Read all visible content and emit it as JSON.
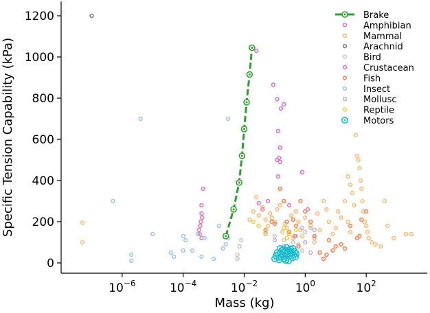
{
  "chart_data": {
    "type": "scatter",
    "title": "",
    "xlabel": "Mass (kg)",
    "ylabel": "Specific Tension Capability (kPa)",
    "xscale": "log",
    "xlim": [
      1e-08,
      10000
    ],
    "ylim": [
      -50,
      1270
    ],
    "x_ticks": [
      {
        "value": 1e-06,
        "base": "10",
        "exp": "−6"
      },
      {
        "value": 0.0001,
        "base": "10",
        "exp": "−4"
      },
      {
        "value": 0.01,
        "base": "10",
        "exp": "−2"
      },
      {
        "value": 1,
        "base": "10",
        "exp": "0"
      },
      {
        "value": 100,
        "base": "10",
        "exp": "2"
      }
    ],
    "y_ticks": [
      0,
      200,
      400,
      600,
      800,
      1000,
      1200
    ],
    "legend_position": "top-right",
    "line_series": [
      {
        "name": "Brake",
        "color": "#2ca02c",
        "points": [
          [
            0.0025,
            130
          ],
          [
            0.0045,
            260
          ],
          [
            0.0068,
            390
          ],
          [
            0.0085,
            520
          ],
          [
            0.01,
            650
          ],
          [
            0.012,
            780
          ],
          [
            0.015,
            915
          ],
          [
            0.018,
            1045
          ]
        ]
      }
    ],
    "series": [
      {
        "name": "Amphibian",
        "color": "#e377c2",
        "points": [
          [
            0.00045,
            360
          ],
          [
            0.0004,
            280
          ],
          [
            0.0004,
            240
          ],
          [
            0.00038,
            200
          ],
          [
            0.00036,
            180
          ],
          [
            0.00035,
            140
          ],
          [
            0.00033,
            160
          ],
          [
            0.0004,
            120
          ],
          [
            0.00042,
            220
          ],
          [
            0.03,
            290
          ],
          [
            0.04,
            260
          ],
          [
            0.06,
            300
          ],
          [
            0.3,
            280
          ],
          [
            0.5,
            250
          ],
          [
            1.2,
            260
          ]
        ]
      },
      {
        "name": "Mammal",
        "color": "#ffbb78",
        "points": [
          [
            5e-08,
            195
          ],
          [
            5e-08,
            100
          ],
          [
            0.02,
            250
          ],
          [
            0.03,
            230
          ],
          [
            0.04,
            270
          ],
          [
            0.05,
            210
          ],
          [
            0.06,
            180
          ],
          [
            0.07,
            240
          ],
          [
            0.08,
            220
          ],
          [
            0.1,
            200
          ],
          [
            0.12,
            260
          ],
          [
            0.15,
            280
          ],
          [
            0.18,
            150
          ],
          [
            0.2,
            300
          ],
          [
            0.22,
            190
          ],
          [
            0.25,
            170
          ],
          [
            0.3,
            140
          ],
          [
            0.35,
            230
          ],
          [
            0.4,
            120
          ],
          [
            0.5,
            250
          ],
          [
            0.6,
            200
          ],
          [
            0.7,
            160
          ],
          [
            0.8,
            130
          ],
          [
            1,
            220
          ],
          [
            1.5,
            180
          ],
          [
            2,
            100
          ],
          [
            2.5,
            240
          ],
          [
            3,
            160
          ],
          [
            4,
            300
          ],
          [
            5,
            260
          ],
          [
            6,
            200
          ],
          [
            8,
            140
          ],
          [
            10,
            170
          ],
          [
            12,
            250
          ],
          [
            15,
            220
          ],
          [
            20,
            300
          ],
          [
            25,
            200
          ],
          [
            30,
            150
          ],
          [
            40,
            280
          ],
          [
            45,
            620
          ],
          [
            50,
            520
          ],
          [
            55,
            500
          ],
          [
            60,
            460
          ],
          [
            65,
            400
          ],
          [
            70,
            360
          ],
          [
            75,
            300
          ],
          [
            80,
            250
          ],
          [
            90,
            200
          ],
          [
            100,
            180
          ],
          [
            110,
            150
          ],
          [
            120,
            120
          ],
          [
            150,
            100
          ],
          [
            200,
            90
          ],
          [
            300,
            80
          ],
          [
            400,
            300
          ],
          [
            500,
            180
          ],
          [
            800,
            120
          ],
          [
            2000,
            140
          ],
          [
            3000,
            140
          ],
          [
            25,
            420
          ],
          [
            30,
            380
          ],
          [
            35,
            340
          ],
          [
            0.015,
            210
          ],
          [
            0.025,
            320
          ]
        ]
      },
      {
        "name": "Arachnid",
        "color": "#7f7f7f",
        "points": [
          [
            1e-07,
            1200
          ]
        ]
      },
      {
        "name": "Bird",
        "color": "#c7c7c7",
        "points": [
          [
            0.006,
            20
          ],
          [
            0.006,
            40
          ],
          [
            0.007,
            80
          ],
          [
            0.008,
            110
          ],
          [
            0.1,
            130
          ],
          [
            0.2,
            110
          ],
          [
            0.4,
            100
          ],
          [
            0.6,
            90
          ],
          [
            1,
            150
          ],
          [
            1.5,
            170
          ],
          [
            2,
            120
          ],
          [
            0.8,
            60
          ]
        ]
      },
      {
        "name": "Crustacean",
        "color": "#da70d6",
        "points": [
          [
            0.025,
            1030
          ],
          [
            0.09,
            865
          ],
          [
            0.12,
            795
          ],
          [
            0.16,
            750
          ],
          [
            0.2,
            770
          ],
          [
            0.13,
            640
          ],
          [
            0.12,
            500
          ],
          [
            0.14,
            510
          ],
          [
            0.15,
            490
          ],
          [
            0.13,
            420
          ],
          [
            0.8,
            440
          ],
          [
            0.15,
            560
          ]
        ]
      },
      {
        "name": "Fish",
        "color": "#ff7f50",
        "points": [
          [
            0.05,
            160
          ],
          [
            0.08,
            200
          ],
          [
            0.1,
            190
          ],
          [
            0.15,
            360
          ],
          [
            0.2,
            300
          ],
          [
            0.25,
            200
          ],
          [
            0.3,
            150
          ],
          [
            0.4,
            210
          ],
          [
            0.5,
            180
          ],
          [
            0.7,
            300
          ],
          [
            1,
            250
          ],
          [
            1.5,
            200
          ],
          [
            2,
            130
          ],
          [
            3,
            50
          ],
          [
            4,
            20
          ],
          [
            5,
            40
          ],
          [
            6,
            110
          ],
          [
            8,
            60
          ],
          [
            10,
            80
          ],
          [
            15,
            90
          ],
          [
            20,
            70
          ],
          [
            30,
            180
          ],
          [
            50,
            120
          ],
          [
            60,
            130
          ],
          [
            70,
            210
          ],
          [
            100,
            250
          ],
          [
            0.6,
            80
          ],
          [
            0.45,
            130
          ]
        ]
      },
      {
        "name": "Insect",
        "color": "#9ecae1",
        "points": [
          [
            5e-07,
            300
          ],
          [
            4e-06,
            700
          ],
          [
            0.003,
            700
          ],
          [
            1e-05,
            140
          ],
          [
            2e-06,
            40
          ],
          [
            2e-06,
            10
          ],
          [
            4e-05,
            50
          ],
          [
            5e-05,
            30
          ],
          [
            0.0001,
            60
          ],
          [
            0.0001,
            130
          ],
          [
            0.00012,
            110
          ],
          [
            0.0002,
            60
          ],
          [
            0.0003,
            140
          ],
          [
            0.0004,
            30
          ],
          [
            0.0005,
            120
          ],
          [
            0.002,
            70
          ],
          [
            0.0015,
            180
          ],
          [
            0.0025,
            90
          ],
          [
            0.003,
            120
          ],
          [
            0.001,
            20
          ]
        ]
      },
      {
        "name": "Mollusc",
        "color": "#c5b0d5",
        "points": [
          [
            0.05,
            140
          ],
          [
            0.1,
            110
          ],
          [
            0.2,
            80
          ],
          [
            0.3,
            60
          ],
          [
            0.5,
            130
          ],
          [
            1,
            100
          ],
          [
            2,
            160
          ],
          [
            0.8,
            170
          ],
          [
            1.5,
            50
          ]
        ]
      },
      {
        "name": "Reptile",
        "color": "#f0d040",
        "points": [
          [
            0.02,
            200
          ],
          [
            0.03,
            180
          ],
          [
            0.05,
            150
          ],
          [
            0.2,
            170
          ],
          [
            0.3,
            140
          ],
          [
            0.5,
            160
          ],
          [
            0.25,
            120
          ]
        ]
      }
    ],
    "motors_series": {
      "name": "Motors",
      "color": "#17becf",
      "points": [
        [
          0.1,
          20
        ],
        [
          0.12,
          50
        ],
        [
          0.13,
          40
        ],
        [
          0.15,
          70
        ],
        [
          0.16,
          30
        ],
        [
          0.17,
          60
        ],
        [
          0.18,
          40
        ],
        [
          0.2,
          20
        ],
        [
          0.22,
          55
        ],
        [
          0.24,
          30
        ],
        [
          0.25,
          75
        ],
        [
          0.27,
          45
        ],
        [
          0.28,
          10
        ],
        [
          0.3,
          60
        ],
        [
          0.32,
          35
        ],
        [
          0.35,
          50
        ],
        [
          0.38,
          25
        ],
        [
          0.4,
          70
        ],
        [
          0.42,
          40
        ],
        [
          0.45,
          55
        ],
        [
          0.48,
          30
        ],
        [
          0.5,
          45
        ],
        [
          0.14,
          15
        ],
        [
          0.19,
          65
        ],
        [
          0.23,
          12
        ],
        [
          0.33,
          68
        ],
        [
          0.11,
          35
        ]
      ]
    },
    "legend": [
      {
        "label": "Brake",
        "color": "#2ca02c",
        "kind": "line"
      },
      {
        "label": "Amphibian",
        "color": "#e377c2",
        "kind": "dot"
      },
      {
        "label": "Mammal",
        "color": "#ffbb78",
        "kind": "dot"
      },
      {
        "label": "Arachnid",
        "color": "#7f7f7f",
        "kind": "dot"
      },
      {
        "label": "Bird",
        "color": "#c7c7c7",
        "kind": "dot"
      },
      {
        "label": "Crustacean",
        "color": "#da70d6",
        "kind": "dot"
      },
      {
        "label": "Fish",
        "color": "#ff7f50",
        "kind": "dot"
      },
      {
        "label": "Insect",
        "color": "#9ecae1",
        "kind": "dot"
      },
      {
        "label": "Mollusc",
        "color": "#c5b0d5",
        "kind": "dot"
      },
      {
        "label": "Reptile",
        "color": "#f0d040",
        "kind": "dot"
      },
      {
        "label": "Motors",
        "color": "#17becf",
        "kind": "ring"
      }
    ]
  }
}
